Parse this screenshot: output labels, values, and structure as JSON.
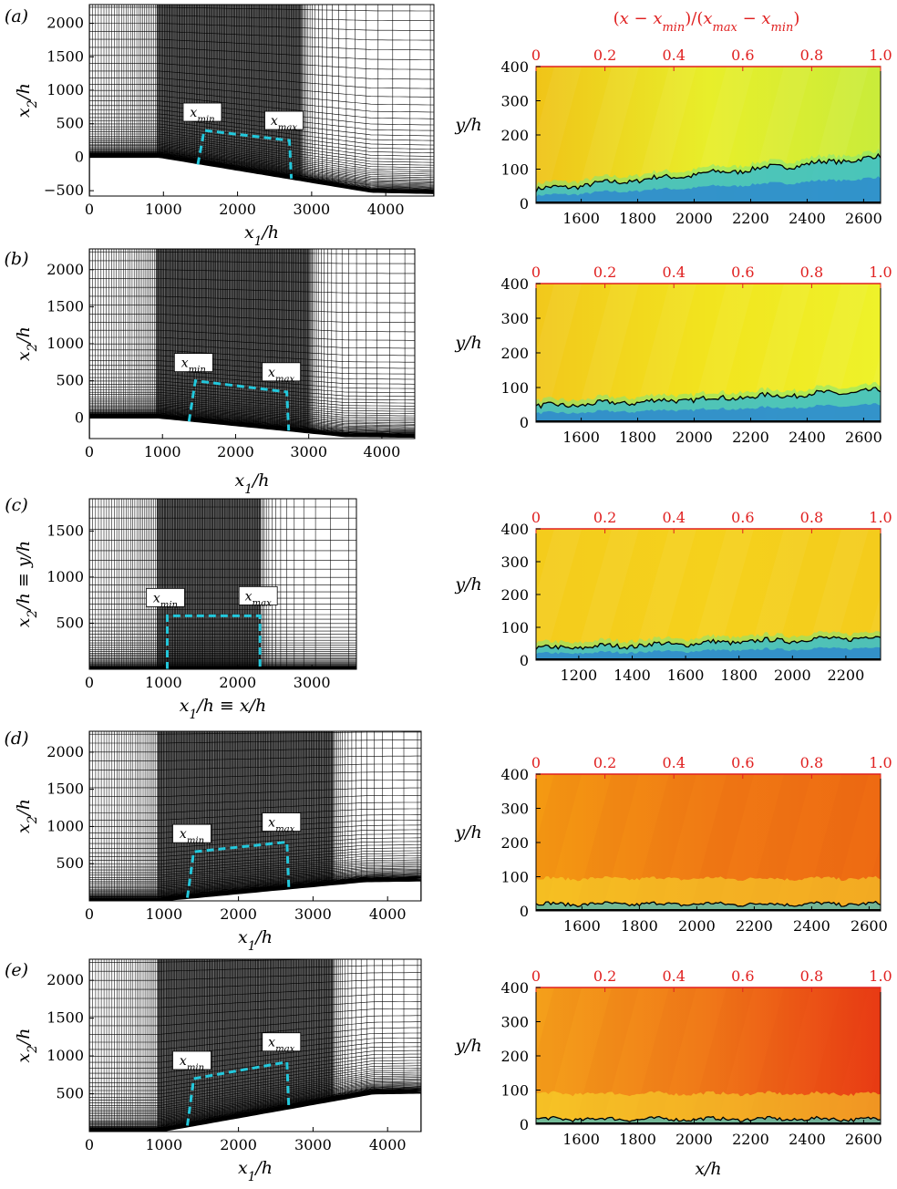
{
  "top_axis_label": "(x − x_min)/(x_max − x_min)",
  "bottom_right_xlabel": "x/h",
  "colors": {
    "dashed_box": "#22c8dc",
    "top_axis": "#e02020",
    "mesh": "#000000"
  },
  "chart_data": [
    {
      "type": "mesh",
      "panel": "(a)",
      "xlabel": "x_1/h",
      "ylabel": "x_2/h",
      "xticks": [
        0,
        1000,
        2000,
        3000,
        4000
      ],
      "yticks": [
        -500,
        0,
        500,
        1000,
        1500,
        2000
      ],
      "xlim": [
        0,
        4650
      ],
      "ylim": [
        -580,
        2280
      ],
      "box_labels": [
        "x_min",
        "x_max"
      ],
      "wall": [
        [
          0,
          0
        ],
        [
          950,
          0
        ],
        [
          3800,
          -520
        ],
        [
          4650,
          -540
        ]
      ],
      "box": {
        "x": [
          1550,
          2700
        ],
        "top": [
          400,
          250
        ]
      }
    },
    {
      "type": "mesh",
      "panel": "(b)",
      "xlabel": "x_1/h",
      "ylabel": "x_2/h",
      "xticks": [
        0,
        1000,
        2000,
        3000,
        4000
      ],
      "yticks": [
        0,
        500,
        1000,
        1500,
        2000
      ],
      "xlim": [
        0,
        4450
      ],
      "ylim": [
        -280,
        2280
      ],
      "box_labels": [
        "x_min",
        "x_max"
      ],
      "wall": [
        [
          0,
          0
        ],
        [
          950,
          0
        ],
        [
          3500,
          -250
        ],
        [
          4450,
          -260
        ]
      ],
      "box": {
        "x": [
          1450,
          2700
        ],
        "top": [
          500,
          350
        ]
      }
    },
    {
      "type": "mesh",
      "panel": "(c)",
      "xlabel": "x_1/h ≡ x/h",
      "ylabel": "x_2/h ≡ y/h",
      "xticks": [
        0,
        1000,
        2000,
        3000
      ],
      "yticks": [
        500,
        1000,
        1500
      ],
      "xlim": [
        0,
        3600
      ],
      "ylim": [
        0,
        1850
      ],
      "box_labels": [
        "x_min",
        "x_max"
      ],
      "wall": [
        [
          0,
          0
        ],
        [
          3600,
          0
        ]
      ],
      "box": {
        "x": [
          1050,
          2300
        ],
        "top": [
          580,
          580
        ]
      }
    },
    {
      "type": "mesh",
      "panel": "(d)",
      "xlabel": "x_1/h",
      "ylabel": "x_2/h",
      "xticks": [
        0,
        1000,
        2000,
        3000,
        4000
      ],
      "yticks": [
        500,
        1000,
        1500,
        2000
      ],
      "xlim": [
        0,
        4450
      ],
      "ylim": [
        0,
        2280
      ],
      "box_labels": [
        "x_min",
        "x_max"
      ],
      "wall": [
        [
          0,
          0
        ],
        [
          950,
          0
        ],
        [
          3700,
          260
        ],
        [
          4450,
          270
        ]
      ],
      "box": {
        "x": [
          1400,
          2650
        ],
        "top": [
          660,
          790
        ]
      }
    },
    {
      "type": "mesh",
      "panel": "(e)",
      "xlabel": "x_1/h",
      "ylabel": "x_2/h",
      "xticks": [
        0,
        1000,
        2000,
        3000,
        4000
      ],
      "yticks": [
        500,
        1000,
        1500,
        2000
      ],
      "xlim": [
        0,
        4450
      ],
      "ylim": [
        0,
        2280
      ],
      "box_labels": [
        "x_min",
        "x_max"
      ],
      "wall": [
        [
          0,
          0
        ],
        [
          950,
          0
        ],
        [
          3800,
          500
        ],
        [
          4450,
          510
        ]
      ],
      "box": {
        "x": [
          1400,
          2650
        ],
        "top": [
          700,
          920
        ]
      }
    },
    {
      "type": "heatmap",
      "panel": "(a)-right",
      "ylabel": "y/h",
      "xlim": [
        1440,
        2660
      ],
      "ylim": [
        0,
        400
      ],
      "xticks": [
        1600,
        1800,
        2000,
        2200,
        2400,
        2600
      ],
      "yticks": [
        0,
        100,
        200,
        300,
        400
      ],
      "topticks": [
        "0",
        "0.2",
        "0.4",
        "0.6",
        "0.8",
        "1.0"
      ],
      "interface": {
        "start": 40,
        "end": 135
      },
      "colors": [
        "#f0c418",
        "#e8ee2a",
        "#c9ec3a"
      ]
    },
    {
      "type": "heatmap",
      "panel": "(b)-right",
      "ylabel": "y/h",
      "xlim": [
        1440,
        2660
      ],
      "ylim": [
        0,
        400
      ],
      "xticks": [
        1600,
        1800,
        2000,
        2200,
        2400,
        2600
      ],
      "yticks": [
        0,
        100,
        200,
        300,
        400
      ],
      "topticks": [
        "0",
        "0.2",
        "0.4",
        "0.6",
        "0.8",
        "1.0"
      ],
      "interface": {
        "start": 45,
        "end": 90
      },
      "colors": [
        "#f2c81c",
        "#f2e41e",
        "#eef22a"
      ]
    },
    {
      "type": "heatmap",
      "panel": "(c)-right",
      "ylabel": "y/h",
      "xlim": [
        1040,
        2330
      ],
      "ylim": [
        0,
        400
      ],
      "xticks": [
        1200,
        1400,
        1600,
        1800,
        2000,
        2200
      ],
      "yticks": [
        0,
        100,
        200,
        300,
        400
      ],
      "topticks": [
        "0",
        "0.2",
        "0.4",
        "0.6",
        "0.8",
        "1.0"
      ],
      "interface": {
        "start": 35,
        "end": 70
      },
      "colors": [
        "#f4cc1c",
        "#f5d11c",
        "#f4cc1c"
      ]
    },
    {
      "type": "heatmap",
      "panel": "(d)-right",
      "ylabel": "y/h",
      "xlim": [
        1440,
        2640
      ],
      "ylim": [
        0,
        400
      ],
      "xticks": [
        1600,
        1800,
        2000,
        2200,
        2400,
        2600
      ],
      "yticks": [
        0,
        100,
        200,
        300,
        400
      ],
      "topticks": [
        "0",
        "0.2",
        "0.4",
        "0.6",
        "0.8",
        "1.0"
      ],
      "interface": {
        "start": 20,
        "end": 20
      },
      "colors": [
        "#f49a12",
        "#f07a14",
        "#ee6a12"
      ]
    },
    {
      "type": "heatmap",
      "panel": "(e)-right",
      "ylabel": "y/h",
      "xlim": [
        1440,
        2660
      ],
      "ylim": [
        0,
        400
      ],
      "xticks": [
        1600,
        1800,
        2000,
        2200,
        2400,
        2600
      ],
      "yticks": [
        0,
        100,
        200,
        300,
        400
      ],
      "topticks": [
        "0",
        "0.2",
        "0.4",
        "0.6",
        "0.8",
        "1.0"
      ],
      "interface": {
        "start": 15,
        "end": 15
      },
      "colors": [
        "#f4a01a",
        "#f07818",
        "#e83a14"
      ]
    }
  ]
}
